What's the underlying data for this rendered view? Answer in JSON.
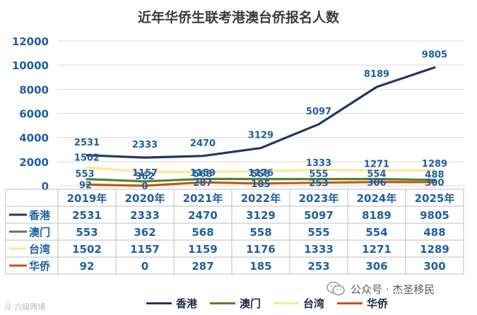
{
  "chart_data": {
    "type": "line",
    "title": "近年华侨生联考港澳台侨报名人数",
    "categories": [
      "2019年",
      "2020年",
      "2021年",
      "2022年",
      "2023年",
      "2024年",
      "2025年"
    ],
    "ylim": [
      0,
      12000
    ],
    "yticks": [
      0,
      2000,
      4000,
      6000,
      8000,
      10000,
      12000
    ],
    "grid": true,
    "legend": "bottom",
    "series": [
      {
        "name": "香港",
        "color": "#1f3864",
        "values": [
          2531,
          2333,
          2470,
          3129,
          5097,
          8189,
          9805
        ]
      },
      {
        "name": "澳门",
        "color": "#548235",
        "values": [
          553,
          362,
          568,
          558,
          555,
          554,
          488
        ]
      },
      {
        "name": "台湾",
        "color": "#ffe699",
        "values": [
          1502,
          1157,
          1159,
          1176,
          1333,
          1271,
          1289
        ]
      },
      {
        "name": "华侨",
        "color": "#c55a11",
        "values": [
          92,
          0,
          287,
          185,
          253,
          306,
          300
        ]
      }
    ]
  },
  "watermark": {
    "left_text": "众 六级跨境",
    "right_brand": "公众号 · 杰圣移民"
  }
}
